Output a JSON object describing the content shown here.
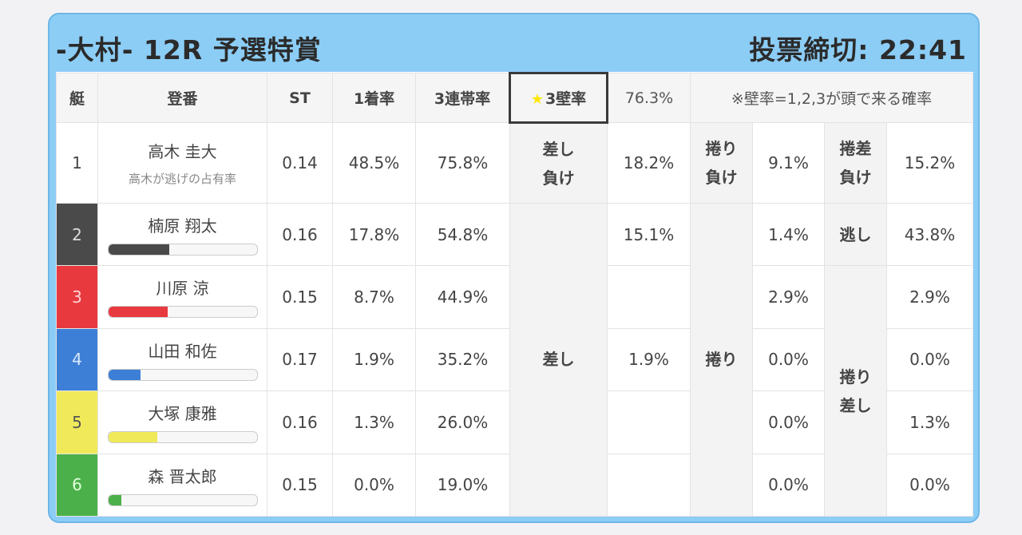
{
  "header": {
    "race_title": "-大村- 12R 予選特賞",
    "deadline": "投票締切: 22:41"
  },
  "columns": {
    "boat": "艇",
    "name": "登番",
    "st": "ST",
    "win_rate": "1着率",
    "top3_rate": "3連帯率",
    "wall_star": "★",
    "wall_label": "3壁率",
    "wall_value": "76.3%",
    "note": "※壁率=1,2,3が頭で来る確率"
  },
  "rows": [
    {
      "boat": "1",
      "name": "高木 圭大",
      "sub": "高木が逃げの占有率",
      "st": "0.14",
      "win": "48.5%",
      "top3": "75.8%"
    },
    {
      "boat": "2",
      "name": "楠原 翔太",
      "st": "0.16",
      "win": "17.8%",
      "top3": "54.8%",
      "bar": 0.41,
      "bar_color": "#4a4a4a"
    },
    {
      "boat": "3",
      "name": "川原 涼",
      "st": "0.15",
      "win": "8.7%",
      "top3": "44.9%",
      "bar": 0.4,
      "bar_color": "#e8393f"
    },
    {
      "boat": "4",
      "name": "山田 和佐",
      "st": "0.17",
      "win": "1.9%",
      "top3": "35.2%",
      "bar": 0.22,
      "bar_color": "#3d7fd6"
    },
    {
      "boat": "5",
      "name": "大塚 康雅",
      "st": "0.16",
      "win": "1.3%",
      "top3": "26.0%",
      "bar": 0.33,
      "bar_color": "#f0ea5a"
    },
    {
      "boat": "6",
      "name": "森 晋太郎",
      "st": "0.15",
      "win": "0.0%",
      "top3": "19.0%",
      "bar": 0.09,
      "bar_color": "#4cb04a"
    }
  ],
  "patterns": {
    "sashi_make": {
      "label1": "差し",
      "label2": "負け",
      "value": "18.2%"
    },
    "makuri_make": {
      "label1": "捲り",
      "label2": "負け",
      "value": "9.1%"
    },
    "makurizashi_make": {
      "label1": "捲差",
      "label2": "負け",
      "value": "15.2%"
    },
    "sashi": {
      "label": "差し",
      "values": [
        "15.1%",
        "",
        "1.9%",
        "",
        ""
      ]
    },
    "makuri": {
      "label": "捲り",
      "values": [
        "1.4%",
        "2.9%",
        "0.0%",
        "0.0%",
        "0.0%"
      ]
    },
    "nige": {
      "label": "逃し",
      "value": "43.8%"
    },
    "makurizashi": {
      "label1": "捲り",
      "label2": "差し",
      "values": [
        "2.9%",
        "0.0%",
        "1.3%",
        "0.0%"
      ]
    }
  }
}
